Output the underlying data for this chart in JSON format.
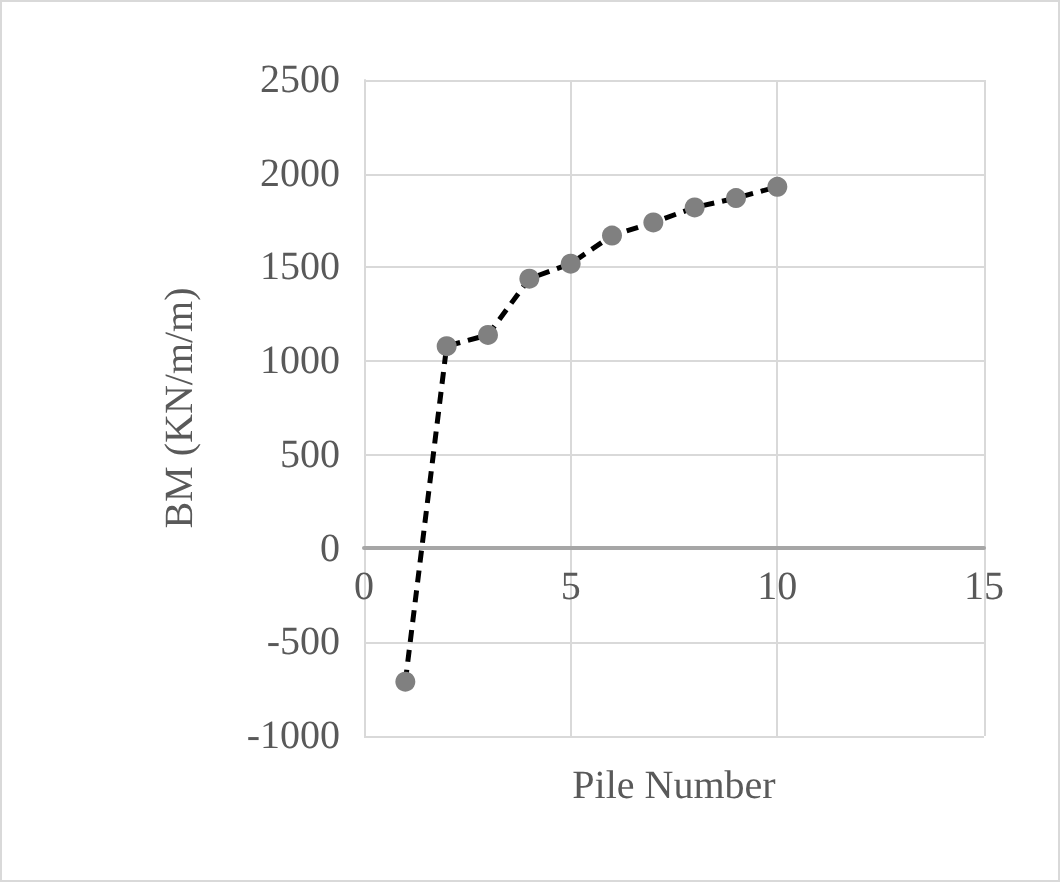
{
  "chart_data": {
    "type": "line",
    "xlabel": "Pile Number",
    "ylabel": "BM (KN/m/m)",
    "x": [
      1,
      2,
      3,
      4,
      5,
      6,
      7,
      8,
      9,
      10
    ],
    "series": [
      {
        "color": "#808080",
        "values": [
          -710,
          1080,
          1140,
          1440,
          1520,
          1670,
          1740,
          1820,
          1870,
          1930
        ]
      }
    ],
    "xlim": [
      0,
      15
    ],
    "xticks": [
      0,
      5,
      10,
      15
    ],
    "ylim": [
      -1000,
      2500
    ],
    "yticks": [
      -1000,
      -500,
      0,
      500,
      1000,
      1500,
      2000,
      2500
    ],
    "grid": true,
    "marker": "circle",
    "line_style": "dashed"
  }
}
